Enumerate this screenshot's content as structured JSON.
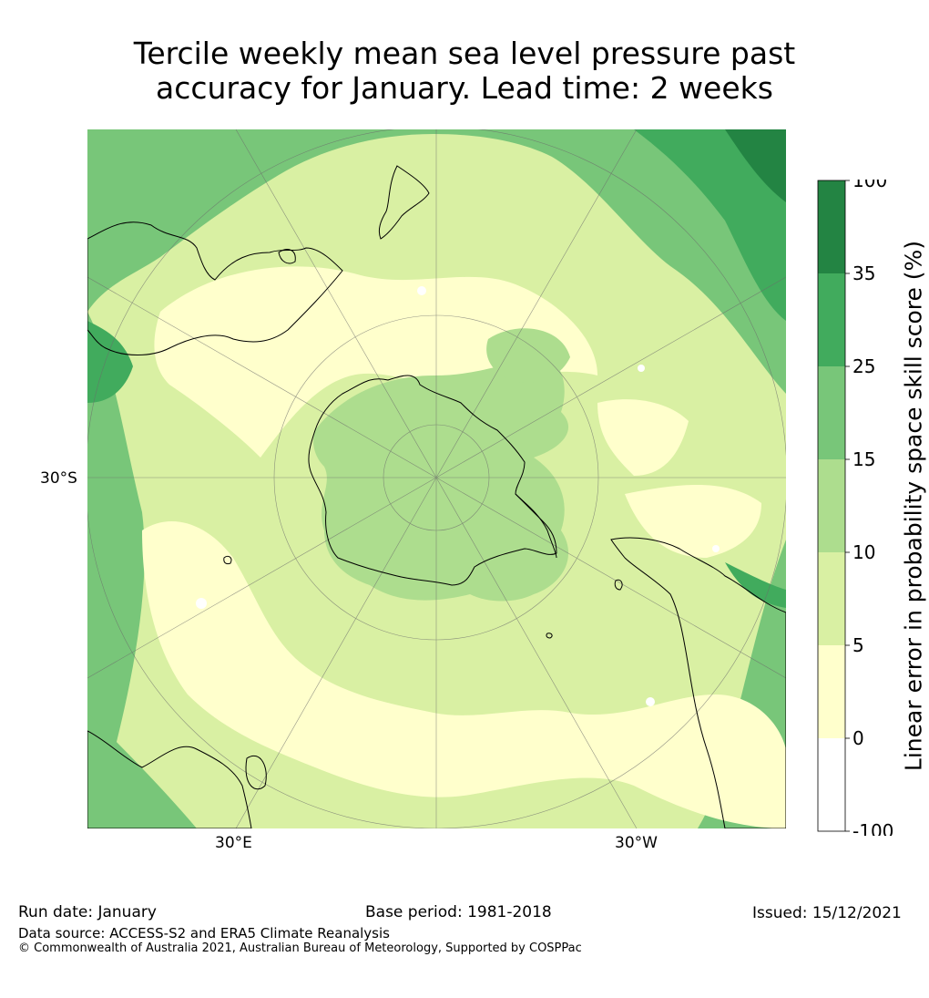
{
  "title": {
    "line1": "Tercile weekly mean sea level pressure past",
    "line2": "accuracy for January. Lead time: 2 weeks"
  },
  "map": {
    "projection": "south-polar-stereographic",
    "axis_labels": {
      "lat_left": "30°S",
      "lon_left": "30°E",
      "lon_right": "30°W"
    },
    "colors": {
      "ocean_base": "#d9f0a3",
      "low": "#ffffcc",
      "mid": "#addd8e",
      "high": "#78c679",
      "higher": "#41ab5d",
      "highest": "#238443",
      "negative": "#ffffff",
      "coast": "#000000"
    }
  },
  "colorbar": {
    "title": "Linear error in probability space skill score (%)",
    "levels": [
      "100",
      "35",
      "25",
      "15",
      "10",
      "5",
      "0",
      "-100"
    ],
    "colors": [
      "#238443",
      "#41ab5d",
      "#78c679",
      "#addd8e",
      "#d9f0a3",
      "#ffffcc",
      "#ffffff"
    ]
  },
  "footer": {
    "run_date": "Run date: January",
    "base_period": "Base period: 1981-2018",
    "issued": "Issued: 15/12/2021",
    "source": "Data source: ACCESS-S2 and ERA5 Climate Reanalysis",
    "copyright": "© Commonwealth of Australia 2021, Australian Bureau of Meteorology, Supported by COSPPac"
  }
}
